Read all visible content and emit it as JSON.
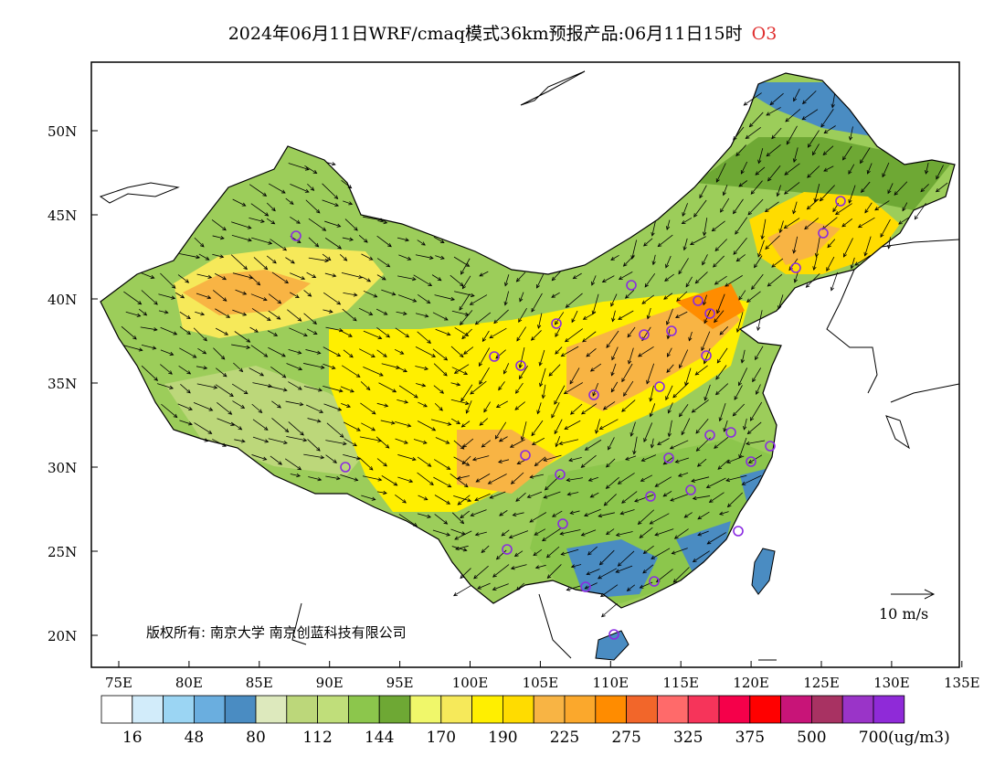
{
  "title": {
    "main": "2024年06月11日WRF/cmaq模式36km预报产品:06月11日15时",
    "species": "O3"
  },
  "axes": {
    "lat_labels": [
      "50N",
      "45N",
      "40N",
      "35N",
      "30N",
      "25N",
      "20N"
    ],
    "lon_labels": [
      "75E",
      "80E",
      "85E",
      "90E",
      "95E",
      "100E",
      "105E",
      "110E",
      "115E",
      "120E",
      "125E",
      "130E",
      "135E"
    ]
  },
  "copyright": "版权所有: 南京大学  南京创蓝科技有限公司",
  "wind_reference": {
    "label": "10 m/s"
  },
  "colorbar": {
    "unit": "(ug/m3)",
    "colors": [
      "#ffffff",
      "#d2ecfa",
      "#9bd5f3",
      "#6aaedf",
      "#4a8cc2",
      "#dde9bd",
      "#bcd77a",
      "#c0de7a",
      "#8cc64c",
      "#6ea834",
      "#f0f76a",
      "#f6e95a",
      "#ffef00",
      "#ffdc00",
      "#f8b444",
      "#fba82c",
      "#ff8c00",
      "#f2662a",
      "#ff6a6a",
      "#f6345a",
      "#f5004a",
      "#ff0000",
      "#c81478",
      "#a83262",
      "#9a34c8",
      "#8f2ad8"
    ],
    "labels": [
      "16",
      "48",
      "80",
      "112",
      "144",
      "170",
      "190",
      "225",
      "275",
      "325",
      "375",
      "500",
      "700"
    ]
  },
  "colors": {
    "title_species": "#e03030",
    "city_marker": "#8a2be2"
  }
}
